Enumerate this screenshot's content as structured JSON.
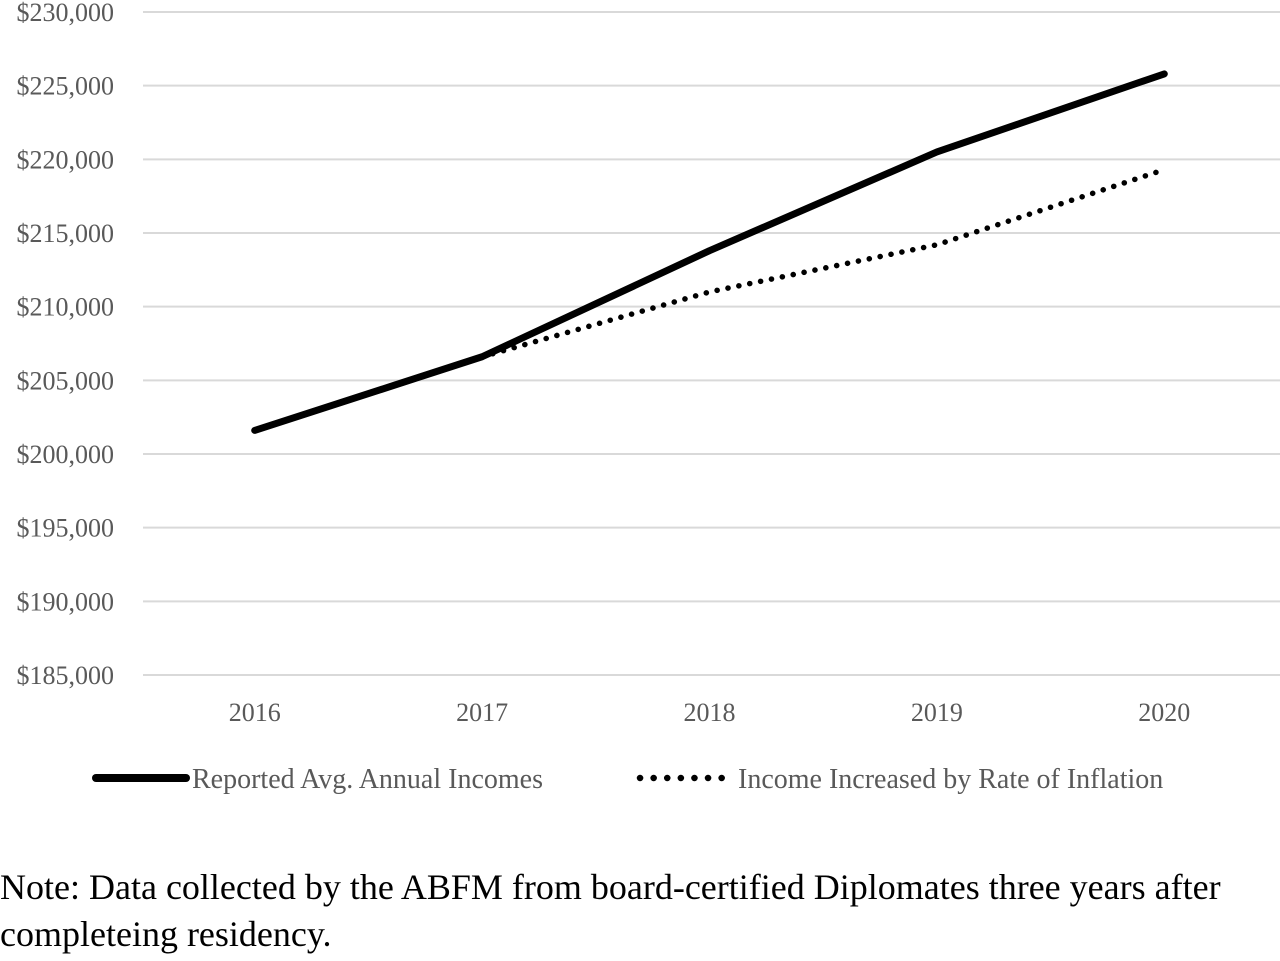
{
  "chart_data": {
    "type": "line",
    "categories": [
      "2016",
      "2017",
      "2018",
      "2019",
      "2020"
    ],
    "series": [
      {
        "name": "Reported Avg. Annual Incomes",
        "values": [
          201600,
          206600,
          213800,
          220500,
          225800
        ],
        "style": "solid",
        "color": "#000000"
      },
      {
        "name": "Income Increased by Rate of Inflation",
        "values": [
          null,
          206600,
          211000,
          214200,
          219300
        ],
        "style": "dotted",
        "color": "#000000"
      }
    ],
    "ylim": [
      185000,
      230000
    ],
    "ytick_labels": [
      "$185,000",
      "$190,000",
      "$195,000",
      "$200,000",
      "$205,000",
      "$210,000",
      "$215,000",
      "$220,000",
      "$225,000",
      "$230,000"
    ],
    "grid": true,
    "legend": "bottom",
    "grid_color": "#d9d9d9"
  },
  "note": "Note: Data collected by the ABFM from board-certified Diplomates three years after completeing residency."
}
